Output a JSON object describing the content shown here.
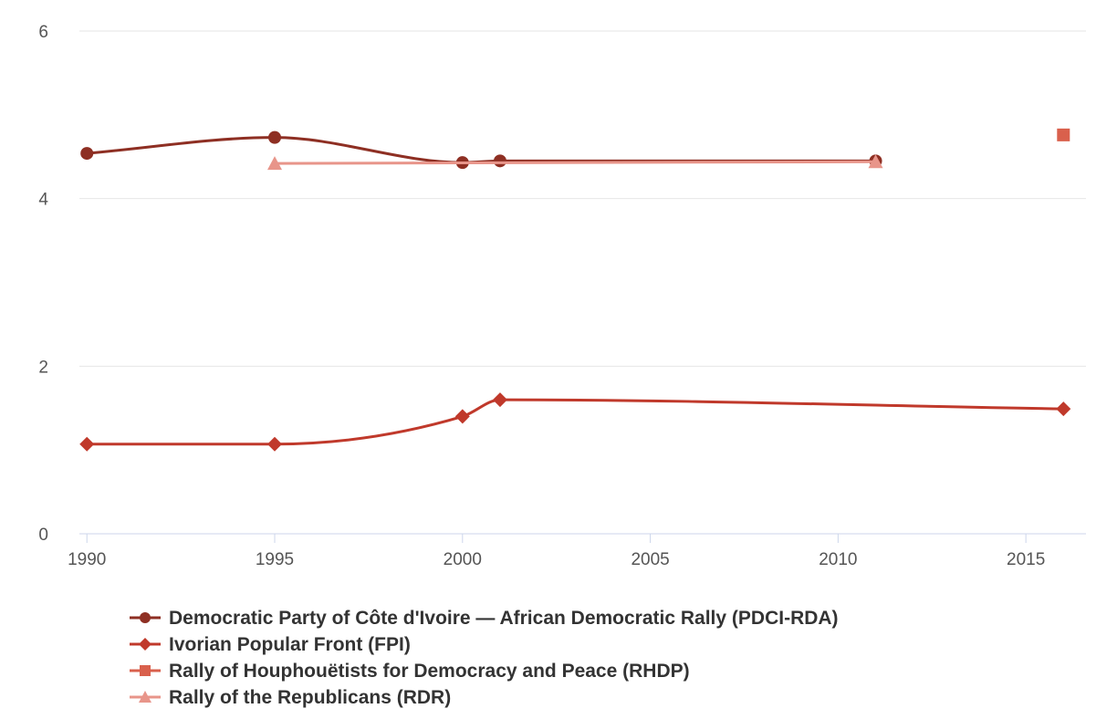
{
  "chart_data": {
    "type": "line",
    "title": "",
    "xlabel": "",
    "ylabel": "",
    "xlim": [
      1989.8,
      2016.6
    ],
    "ylim": [
      0,
      6
    ],
    "xticks": [
      1990,
      1995,
      2000,
      2005,
      2010,
      2015
    ],
    "yticks": [
      0,
      2,
      4,
      6
    ],
    "grid": "horizontal",
    "legend_position": "bottom",
    "series": [
      {
        "name": "Democratic Party of Côte d'Ivoire — African Democratic Rally (PDCI-RDA)",
        "color": "#8e2f23",
        "marker": "circle",
        "x": [
          1990,
          1995,
          2000,
          2001,
          2011
        ],
        "values": [
          4.54,
          4.73,
          4.43,
          4.45,
          4.45
        ]
      },
      {
        "name": "Ivorian Popular Front (FPI)",
        "color": "#c0392b",
        "marker": "diamond",
        "x": [
          1990,
          1995,
          2000,
          2001,
          2016
        ],
        "values": [
          1.07,
          1.07,
          1.4,
          1.6,
          1.49
        ]
      },
      {
        "name": "Rally of Houphouëtists for Democracy and Peace (RHDP)",
        "color": "#d9604c",
        "marker": "square",
        "x": [
          2016
        ],
        "values": [
          4.76
        ]
      },
      {
        "name": "Rally of the Republicans (RDR)",
        "color": "#e8958a",
        "marker": "triangle",
        "x": [
          1995,
          2011
        ],
        "values": [
          4.42,
          4.44
        ]
      }
    ]
  }
}
